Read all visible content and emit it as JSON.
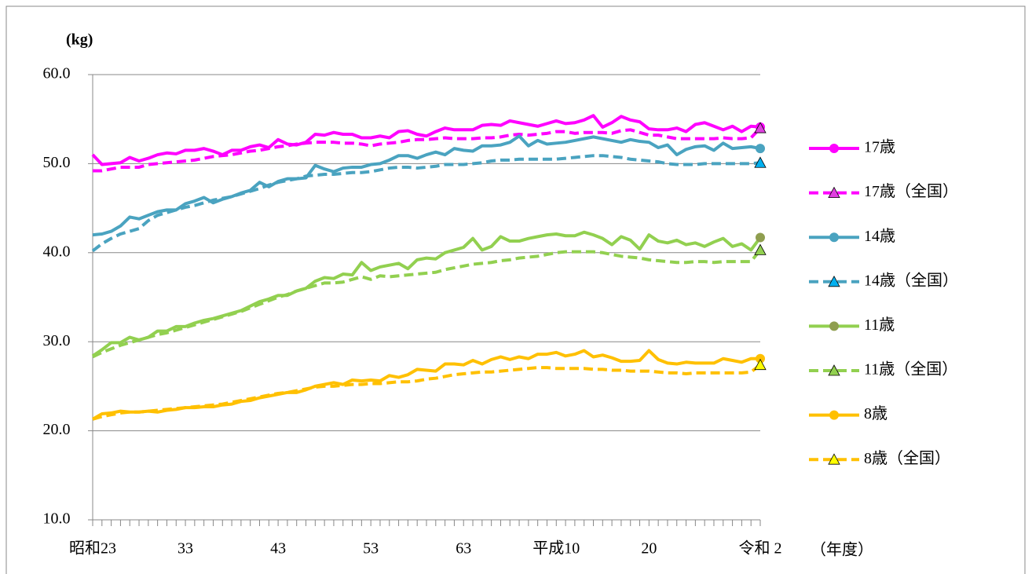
{
  "chart_data": {
    "type": "line",
    "y_label": "(kg)",
    "x_label": "（年度）",
    "categories": [
      "昭和23",
      null,
      null,
      null,
      null,
      null,
      null,
      null,
      null,
      null,
      "33",
      null,
      null,
      null,
      null,
      null,
      null,
      null,
      null,
      null,
      "43",
      null,
      null,
      null,
      null,
      null,
      null,
      null,
      null,
      null,
      "53",
      null,
      null,
      null,
      null,
      null,
      null,
      null,
      null,
      null,
      "63",
      null,
      null,
      null,
      null,
      null,
      null,
      null,
      null,
      null,
      "平成10",
      null,
      null,
      null,
      null,
      null,
      null,
      null,
      null,
      null,
      "20",
      null,
      null,
      null,
      null,
      null,
      null,
      null,
      null,
      null,
      null,
      null,
      "令和 2"
    ],
    "ylim": [
      10,
      60
    ],
    "yticks": [
      {
        "value": 10,
        "label": "10.0"
      },
      {
        "value": 20,
        "label": "20.0"
      },
      {
        "value": 30,
        "label": "30.0"
      },
      {
        "value": 40,
        "label": "40.0"
      },
      {
        "value": 50,
        "label": "50.0"
      },
      {
        "value": 60,
        "label": "60.0"
      }
    ],
    "grid": true,
    "legend": "right",
    "series": [
      {
        "name": "17歳",
        "color": "#ff00ff",
        "dash": false,
        "marker": "circle",
        "marker_color": "#ff00ff",
        "values": [
          51.0,
          49.9,
          50.0,
          50.1,
          50.7,
          50.3,
          50.6,
          51.0,
          51.2,
          51.1,
          51.5,
          51.5,
          51.7,
          51.4,
          51.0,
          51.5,
          51.5,
          51.9,
          52.1,
          51.8,
          52.7,
          52.2,
          52.1,
          52.4,
          53.3,
          53.2,
          53.5,
          53.3,
          53.3,
          52.9,
          52.9,
          53.1,
          52.9,
          53.6,
          53.7,
          53.3,
          53.1,
          53.6,
          54.0,
          53.8,
          53.8,
          53.8,
          54.3,
          54.4,
          54.3,
          54.8,
          54.6,
          54.4,
          54.2,
          54.5,
          54.8,
          54.5,
          54.6,
          54.9,
          55.4,
          54.1,
          54.6,
          55.3,
          54.9,
          54.7,
          53.9,
          53.8,
          53.8,
          54.0,
          53.6,
          54.4,
          54.6,
          54.2,
          53.8,
          54.2,
          53.6,
          54.2,
          54.1
        ]
      },
      {
        "name": "17歳（全国）",
        "color": "#ff00ff",
        "dash": true,
        "marker": "triangle",
        "marker_color": "#e040e0",
        "values": [
          49.2,
          49.2,
          49.4,
          49.6,
          49.6,
          49.6,
          49.9,
          50.0,
          50.1,
          50.2,
          50.3,
          50.4,
          50.6,
          50.8,
          50.9,
          51.0,
          51.2,
          51.4,
          51.5,
          51.7,
          51.9,
          52.0,
          52.2,
          52.3,
          52.4,
          52.4,
          52.4,
          52.3,
          52.3,
          52.2,
          52.0,
          52.2,
          52.3,
          52.4,
          52.6,
          52.7,
          52.7,
          52.8,
          52.9,
          52.8,
          52.8,
          52.8,
          52.9,
          52.9,
          53.0,
          53.2,
          53.3,
          53.2,
          53.3,
          53.4,
          53.6,
          53.6,
          53.4,
          53.5,
          53.5,
          53.5,
          53.4,
          53.7,
          53.8,
          53.5,
          53.2,
          53.2,
          53.0,
          52.8,
          52.8,
          52.8,
          52.8,
          52.8,
          52.9,
          52.8,
          52.8,
          52.9,
          54.0
        ]
      },
      {
        "name": "14歳",
        "color": "#4aa3c0",
        "dash": false,
        "marker": "circle",
        "marker_color": "#4aa3c0",
        "values": [
          42.0,
          42.1,
          42.4,
          43.0,
          44.0,
          43.8,
          44.2,
          44.6,
          44.8,
          44.8,
          45.5,
          45.8,
          46.2,
          45.6,
          46.0,
          46.3,
          46.7,
          47.0,
          47.9,
          47.4,
          48.0,
          48.3,
          48.3,
          48.4,
          49.8,
          49.4,
          49.1,
          49.5,
          49.6,
          49.6,
          49.9,
          50.0,
          50.4,
          50.9,
          50.9,
          50.6,
          51.0,
          51.3,
          51.0,
          51.7,
          51.5,
          51.4,
          52.0,
          52.0,
          52.1,
          52.4,
          53.1,
          52.0,
          52.6,
          52.2,
          52.3,
          52.4,
          52.6,
          52.8,
          53.0,
          52.8,
          52.6,
          52.4,
          52.7,
          52.5,
          52.4,
          51.8,
          52.1,
          51.0,
          51.6,
          51.9,
          52.0,
          51.5,
          52.3,
          51.7,
          51.8,
          51.9,
          51.7
        ]
      },
      {
        "name": "14歳（全国）",
        "color": "#4aa3c0",
        "dash": true,
        "marker": "triangle",
        "marker_color": "#00b0f0",
        "values": [
          40.2,
          41.0,
          41.6,
          42.1,
          42.4,
          42.7,
          43.6,
          44.2,
          44.5,
          44.8,
          45.1,
          45.3,
          45.6,
          45.9,
          46.1,
          46.3,
          46.6,
          46.9,
          47.2,
          47.6,
          47.9,
          48.1,
          48.3,
          48.6,
          48.7,
          48.8,
          48.8,
          48.9,
          49.0,
          49.0,
          49.1,
          49.3,
          49.5,
          49.6,
          49.6,
          49.5,
          49.6,
          49.7,
          49.9,
          49.9,
          49.9,
          50.0,
          50.1,
          50.3,
          50.4,
          50.4,
          50.5,
          50.5,
          50.5,
          50.5,
          50.5,
          50.6,
          50.7,
          50.8,
          50.9,
          50.9,
          50.8,
          50.7,
          50.5,
          50.4,
          50.3,
          50.2,
          50.0,
          49.9,
          49.9,
          49.9,
          50.0,
          50.0,
          50.0,
          50.0,
          50.0,
          50.0,
          50.1
        ]
      },
      {
        "name": "11歳",
        "color": "#92d050",
        "dash": false,
        "marker": "circle",
        "marker_color": "#8f9e4f",
        "values": [
          28.4,
          29.1,
          29.9,
          29.9,
          30.5,
          30.2,
          30.5,
          31.2,
          31.2,
          31.7,
          31.7,
          32.1,
          32.4,
          32.6,
          32.9,
          33.2,
          33.5,
          34.0,
          34.5,
          34.8,
          35.2,
          35.2,
          35.7,
          36.0,
          36.8,
          37.2,
          37.1,
          37.6,
          37.5,
          38.9,
          38.0,
          38.4,
          38.6,
          38.8,
          38.2,
          39.2,
          39.4,
          39.3,
          40.0,
          40.3,
          40.6,
          41.6,
          40.3,
          40.7,
          41.8,
          41.3,
          41.3,
          41.6,
          41.8,
          42.0,
          42.1,
          41.9,
          41.9,
          42.3,
          42.0,
          41.6,
          40.9,
          41.8,
          41.4,
          40.4,
          42.0,
          41.3,
          41.1,
          41.4,
          40.9,
          41.1,
          40.7,
          41.2,
          41.6,
          40.7,
          41.0,
          40.3,
          41.7
        ]
      },
      {
        "name": "11歳（全国）",
        "color": "#92d050",
        "dash": true,
        "marker": "triangle",
        "marker_color": "#92d050",
        "values": [
          28.3,
          28.8,
          29.2,
          29.6,
          29.9,
          30.2,
          30.5,
          30.8,
          31.0,
          31.3,
          31.6,
          31.9,
          32.2,
          32.5,
          32.8,
          33.1,
          33.4,
          33.8,
          34.2,
          34.6,
          35.0,
          35.3,
          35.7,
          36.0,
          36.3,
          36.6,
          36.6,
          36.7,
          37.0,
          37.3,
          37.0,
          37.4,
          37.3,
          37.4,
          37.5,
          37.6,
          37.7,
          37.8,
          38.1,
          38.3,
          38.5,
          38.7,
          38.8,
          38.9,
          39.1,
          39.2,
          39.4,
          39.5,
          39.6,
          39.8,
          40.0,
          40.1,
          40.1,
          40.1,
          40.1,
          40.0,
          39.8,
          39.6,
          39.5,
          39.4,
          39.2,
          39.1,
          39.0,
          38.9,
          38.9,
          39.0,
          39.0,
          38.9,
          39.0,
          39.0,
          39.0,
          39.0,
          40.3
        ]
      },
      {
        "name": "8歳",
        "color": "#ffc000",
        "dash": false,
        "marker": "circle",
        "marker_color": "#ffc000",
        "values": [
          21.3,
          21.9,
          22.0,
          22.2,
          22.1,
          22.1,
          22.2,
          22.1,
          22.3,
          22.4,
          22.6,
          22.6,
          22.7,
          22.7,
          22.9,
          23.0,
          23.3,
          23.4,
          23.7,
          23.9,
          24.1,
          24.3,
          24.3,
          24.6,
          25.0,
          25.2,
          25.4,
          25.2,
          25.7,
          25.6,
          25.7,
          25.6,
          26.2,
          26.0,
          26.3,
          26.9,
          26.8,
          26.7,
          27.5,
          27.5,
          27.4,
          27.9,
          27.5,
          28.0,
          28.3,
          28.0,
          28.3,
          28.1,
          28.6,
          28.6,
          28.8,
          28.4,
          28.6,
          29.0,
          28.3,
          28.5,
          28.2,
          27.8,
          27.8,
          27.9,
          29.0,
          28.0,
          27.6,
          27.5,
          27.7,
          27.6,
          27.6,
          27.6,
          28.1,
          27.9,
          27.7,
          28.1,
          28.1
        ]
      },
      {
        "name": "8歳（全国）",
        "color": "#ffc000",
        "dash": true,
        "marker": "triangle",
        "marker_color": "#ffff00",
        "values": [
          21.3,
          21.6,
          21.8,
          22.0,
          22.1,
          22.1,
          22.2,
          22.3,
          22.4,
          22.5,
          22.6,
          22.7,
          22.8,
          22.9,
          23.0,
          23.2,
          23.4,
          23.6,
          23.8,
          24.0,
          24.2,
          24.3,
          24.5,
          24.7,
          24.9,
          25.0,
          25.0,
          25.1,
          25.2,
          25.2,
          25.3,
          25.3,
          25.4,
          25.5,
          25.5,
          25.6,
          25.8,
          25.9,
          26.1,
          26.3,
          26.4,
          26.5,
          26.6,
          26.6,
          26.7,
          26.8,
          26.9,
          27.0,
          27.1,
          27.1,
          27.0,
          27.0,
          27.0,
          27.0,
          26.9,
          26.9,
          26.8,
          26.8,
          26.7,
          26.7,
          26.7,
          26.6,
          26.5,
          26.5,
          26.4,
          26.5,
          26.5,
          26.5,
          26.5,
          26.5,
          26.5,
          26.6,
          27.4
        ]
      }
    ]
  }
}
